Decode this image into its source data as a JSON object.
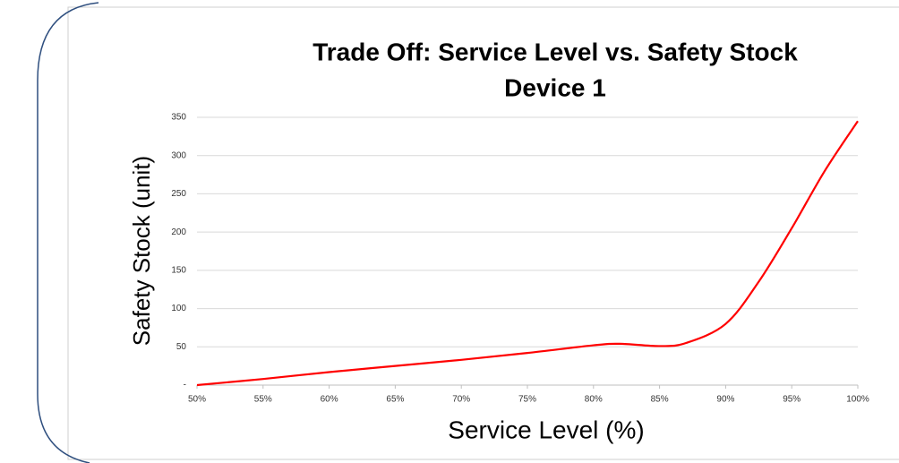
{
  "chart_data": {
    "type": "line",
    "title": "Trade Off: Service Level vs. Safety Stock",
    "subtitle": "Device 1",
    "x_label": "Service Level (%)",
    "y_label": "Safety Stock (unit)",
    "x": [
      50,
      55,
      60,
      65,
      70,
      75,
      80,
      82,
      85,
      87,
      90,
      92.5,
      95,
      97.5,
      100
    ],
    "series": [
      {
        "name": "Safety Stock",
        "color": "#ff0000",
        "values": [
          0,
          8,
          17,
          25,
          33,
          42,
          52,
          54,
          51,
          55,
          80,
          135,
          205,
          280,
          345
        ]
      }
    ],
    "xlim": [
      50,
      100
    ],
    "xticks": [
      {
        "value": 50,
        "label": "50%"
      },
      {
        "value": 55,
        "label": "55%"
      },
      {
        "value": 60,
        "label": "60%"
      },
      {
        "value": 65,
        "label": "65%"
      },
      {
        "value": 70,
        "label": "70%"
      },
      {
        "value": 75,
        "label": "75%"
      },
      {
        "value": 80,
        "label": "80%"
      },
      {
        "value": 85,
        "label": "85%"
      },
      {
        "value": 90,
        "label": "90%"
      },
      {
        "value": 95,
        "label": "95%"
      },
      {
        "value": 100,
        "label": "100%"
      }
    ],
    "ylim": [
      0,
      350
    ],
    "yticks": [
      {
        "value": 0,
        "label": "-"
      },
      50,
      100,
      150,
      200,
      250,
      300,
      350
    ],
    "grid": true
  }
}
